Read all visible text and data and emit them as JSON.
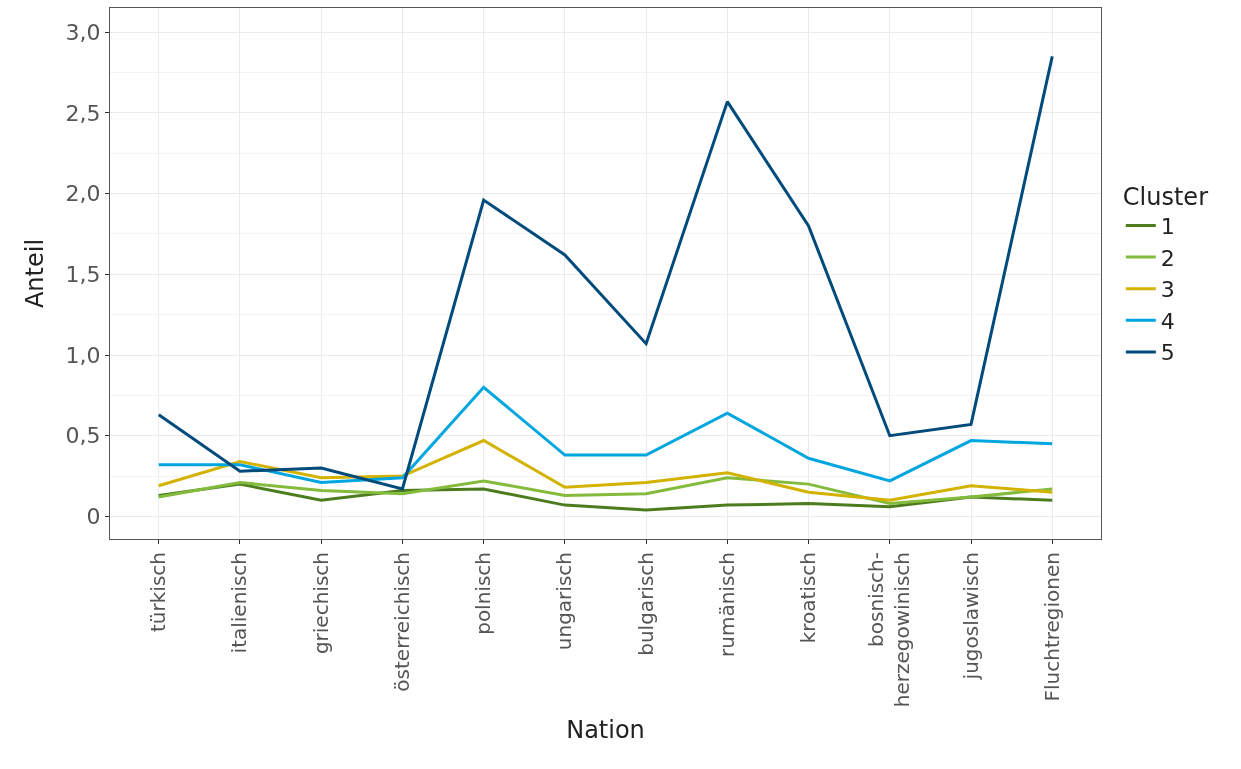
{
  "chart_data": {
    "type": "line",
    "xlabel": "Nation",
    "ylabel": "Anteil",
    "legend_title": "Cluster",
    "legend": "right",
    "grid": true,
    "categories": [
      "türkisch",
      "italienisch",
      "griechisch",
      "österreichisch",
      "polnisch",
      "ungarisch",
      "bulgarisch",
      "rumänisch",
      "kroatisch",
      "bosnisch-\nherzegowinisch",
      "jugoslawisch",
      "Fluchtregionen"
    ],
    "ylim": [
      -0.14,
      3.15
    ],
    "yticks": [
      {
        "value": 0,
        "label": "0"
      },
      {
        "value": 0.5,
        "label": "0,5"
      },
      {
        "value": 1,
        "label": "1,0"
      },
      {
        "value": 1.5,
        "label": "1,5"
      },
      {
        "value": 2,
        "label": "2,0"
      },
      {
        "value": 2.5,
        "label": "2,5"
      },
      {
        "value": 3,
        "label": "3,0"
      }
    ],
    "series": [
      {
        "name": "1",
        "color": "#4d7c1f",
        "values": [
          0.13,
          0.2,
          0.1,
          0.16,
          0.17,
          0.07,
          0.04,
          0.07,
          0.08,
          0.06,
          0.12,
          0.1
        ]
      },
      {
        "name": "2",
        "color": "#84bb3c",
        "values": [
          0.12,
          0.21,
          0.16,
          0.14,
          0.22,
          0.13,
          0.14,
          0.24,
          0.2,
          0.08,
          0.12,
          0.17
        ]
      },
      {
        "name": "3",
        "color": "#d4b200",
        "values": [
          0.19,
          0.34,
          0.24,
          0.25,
          0.47,
          0.18,
          0.21,
          0.27,
          0.15,
          0.1,
          0.19,
          0.15
        ]
      },
      {
        "name": "4",
        "color": "#00a6e0",
        "values": [
          0.32,
          0.32,
          0.21,
          0.24,
          0.8,
          0.38,
          0.38,
          0.64,
          0.36,
          0.22,
          0.47,
          0.45
        ]
      },
      {
        "name": "5",
        "color": "#004b7c",
        "values": [
          0.63,
          0.28,
          0.3,
          0.17,
          1.96,
          1.62,
          1.07,
          2.57,
          1.8,
          0.5,
          0.57,
          2.85
        ]
      }
    ]
  }
}
